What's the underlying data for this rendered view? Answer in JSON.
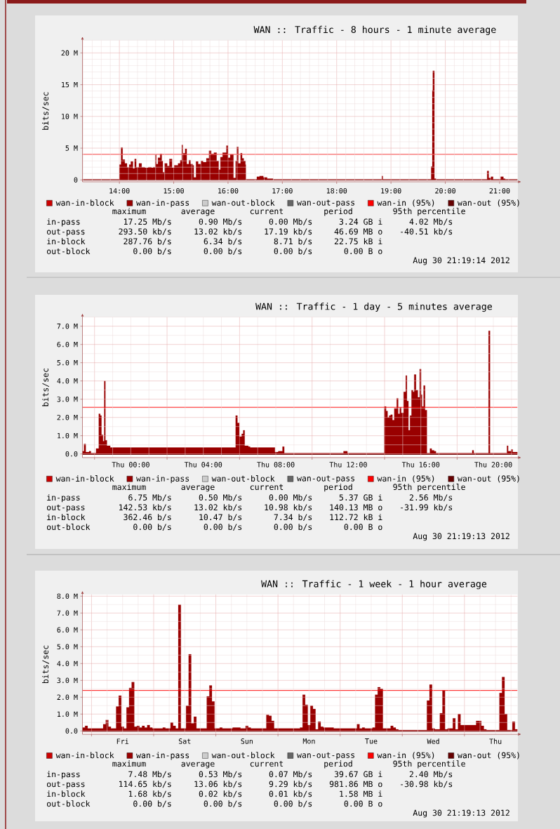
{
  "chart_data": [
    {
      "type": "area",
      "title": "WAN :: Traffic - 8 hours - 1 minute average",
      "ylabel": "bits/sec",
      "xlim": [
        13.32,
        21.33
      ],
      "ylim": [
        -0.3,
        22
      ],
      "xticks": [
        {
          "value": 14,
          "label": "14:00"
        },
        {
          "value": 15,
          "label": "15:00"
        },
        {
          "value": 16,
          "label": "16:00"
        },
        {
          "value": 17,
          "label": "17:00"
        },
        {
          "value": 18,
          "label": "18:00"
        },
        {
          "value": 19,
          "label": "19:00"
        },
        {
          "value": 20,
          "label": "20:00"
        },
        {
          "value": 21,
          "label": "21:00"
        }
      ],
      "yticks": [
        0,
        {
          "value": 5,
          "label": "5 M"
        },
        {
          "value": 10,
          "label": "10 M"
        },
        {
          "value": 15,
          "label": "15 M"
        },
        {
          "value": 20,
          "label": "20 M"
        }
      ],
      "grid": true,
      "legend": "bottom",
      "x": [
        13.32,
        14.0,
        14.03,
        14.06,
        14.1,
        14.14,
        14.18,
        14.21,
        14.25,
        14.28,
        14.31,
        14.36,
        14.41,
        14.47,
        14.53,
        14.59,
        14.62,
        14.66,
        14.68,
        14.71,
        14.75,
        14.78,
        14.8,
        14.83,
        14.88,
        14.92,
        14.97,
        15.01,
        15.08,
        15.12,
        15.15,
        15.17,
        15.21,
        15.24,
        15.28,
        15.31,
        15.35,
        15.37,
        15.41,
        15.45,
        15.5,
        15.54,
        15.6,
        15.65,
        15.69,
        15.74,
        15.79,
        15.83,
        15.86,
        15.9,
        15.97,
        16.0,
        16.04,
        16.1,
        16.14,
        16.16,
        16.19,
        16.23,
        16.26,
        16.29,
        16.32,
        16.33,
        16.53,
        16.58,
        16.65,
        16.72,
        16.83,
        18.83,
        18.85,
        19.74,
        19.76,
        19.77,
        19.8,
        19.83,
        20.77,
        20.8,
        20.84,
        20.88,
        21.02,
        21.07,
        21.1,
        21.33
      ],
      "series": [
        {
          "name": "wan-in-block",
          "color": "#cc0000",
          "values": [
            null,
            null,
            null,
            null,
            null,
            null,
            null,
            null,
            null,
            null,
            null,
            null,
            null,
            null,
            null,
            null,
            null,
            null,
            null,
            null,
            null,
            null,
            null,
            null,
            null,
            null,
            null,
            null,
            null,
            null,
            null,
            null,
            null,
            null,
            null,
            null,
            null,
            null,
            null,
            null,
            null,
            null,
            null,
            null,
            null,
            null,
            null,
            null,
            null,
            null,
            null,
            null,
            null,
            null,
            null,
            null,
            null,
            null,
            null,
            null,
            null,
            null,
            null,
            null,
            null,
            null,
            null,
            null,
            null,
            null,
            null,
            null,
            null,
            null,
            null,
            null,
            null,
            null,
            null,
            null,
            null,
            null
          ]
        },
        {
          "name": "wan-in-pass",
          "color": "#990000",
          "values": [
            0.1,
            2.4,
            5.1,
            3.2,
            2.6,
            2.0,
            2.4,
            2.9,
            1.8,
            3.3,
            2.0,
            2.6,
            2.0,
            1.9,
            2.0,
            1.9,
            2.0,
            4.0,
            2.5,
            3.5,
            4.1,
            3.0,
            1.2,
            2.6,
            2.2,
            3.3,
            1.9,
            2.3,
            2.6,
            3.1,
            5.5,
            4.2,
            4.9,
            2.5,
            3.1,
            2.5,
            2.3,
            0.4,
            2.9,
            2.5,
            3.0,
            2.8,
            3.4,
            4.6,
            4.1,
            4.3,
            3.0,
            1.6,
            3.6,
            4.3,
            5.4,
            3.5,
            4.0,
            0.3,
            3.0,
            5.2,
            2.6,
            4.2,
            3.4,
            3.0,
            2.4,
            0.1,
            0.5,
            0.6,
            0.4,
            0.2,
            0.1,
            0.6,
            0.1,
            2.1,
            14.1,
            17.2,
            0.2,
            0.1,
            1.4,
            0.3,
            0.5,
            0.1,
            0.5,
            0.2,
            0.1,
            0.1
          ]
        },
        {
          "name": "wan-out-block",
          "color": "#cccccc",
          "values": [
            null,
            null,
            null,
            null,
            null,
            null,
            null,
            null,
            null,
            null,
            null,
            null,
            null,
            null,
            null,
            null,
            null,
            null,
            null,
            null,
            null,
            null,
            null,
            null,
            null,
            null,
            null,
            null,
            null,
            null,
            null,
            null,
            null,
            null,
            null,
            null,
            null,
            null,
            null,
            null,
            null,
            null,
            null,
            null,
            null,
            null,
            null,
            null,
            null,
            null,
            null,
            null,
            null,
            null,
            null,
            null,
            null,
            null,
            null,
            null,
            null,
            null,
            null,
            null,
            null,
            null,
            null,
            null,
            null,
            null,
            null,
            null,
            null,
            null,
            null,
            null,
            null,
            null,
            null,
            null,
            null,
            null
          ]
        },
        {
          "name": "wan-out-pass",
          "color": "#666666",
          "values": [
            null,
            null,
            null,
            null,
            null,
            null,
            null,
            null,
            null,
            null,
            null,
            null,
            null,
            null,
            null,
            null,
            null,
            null,
            null,
            null,
            null,
            null,
            null,
            null,
            null,
            null,
            null,
            null,
            null,
            null,
            null,
            null,
            null,
            null,
            null,
            null,
            null,
            null,
            null,
            null,
            null,
            null,
            null,
            null,
            null,
            null,
            null,
            null,
            null,
            null,
            null,
            null,
            null,
            null,
            null,
            null,
            null,
            null,
            null,
            null,
            null,
            null,
            null,
            null,
            null,
            null,
            null,
            null,
            null,
            null,
            null,
            null,
            null,
            null,
            null,
            null,
            null,
            null,
            null,
            null,
            null,
            null
          ]
        }
      ],
      "ref_lines": [
        {
          "axis": "y",
          "value": 4.02,
          "label": "wan-in (95%)",
          "color": "#ff0000"
        },
        {
          "axis": "y",
          "value": -0.04,
          "label": "wan-out (95%)",
          "color": "#660000"
        }
      ],
      "annotations": [
        "maximum",
        "average",
        "current",
        "period",
        "95th percentile",
        "in-pass",
        "17.25 Mb/s",
        "0.90 Mb/s",
        "0.00 Mb/s",
        "3.24 GB i",
        "4.02 Mb/s",
        "out-pass",
        "293.50 kb/s",
        "13.02 kb/s",
        "17.19 kb/s",
        "46.69 MB o",
        "-40.51 kb/s",
        "in-block",
        "287.76 b/s",
        "6.34 b/s",
        "8.71 b/s",
        "22.75 kB i",
        "out-block",
        "0.00 b/s",
        "0.00 b/s",
        "0.00 b/s",
        "0.00 B o",
        "Aug 30 21:19:14 2012"
      ]
    },
    {
      "type": "area",
      "title": "WAN :: Traffic - 1 day - 5 minutes average",
      "ylabel": "bits/sec",
      "xlim": [
        "2012-08-29T21:20",
        "2012-08-30T21:20"
      ],
      "ylim": [
        -0.2,
        7.5
      ],
      "xticks": [
        {
          "value": "2012-08-29T22:00",
          "label": null
        },
        {
          "value": "2012-08-30T00:00",
          "label": "Thu 00:00"
        },
        {
          "value": "2012-08-30T02:00",
          "label": null
        },
        {
          "value": "2012-08-30T04:00",
          "label": "Thu 04:00"
        },
        {
          "value": "2012-08-30T06:00",
          "label": null
        },
        {
          "value": "2012-08-30T08:00",
          "label": "Thu 08:00"
        },
        {
          "value": "2012-08-30T10:00",
          "label": null
        },
        {
          "value": "2012-08-30T12:00",
          "label": "Thu 12:00"
        },
        {
          "value": "2012-08-30T14:00",
          "label": null
        },
        {
          "value": "2012-08-30T16:00",
          "label": "Thu 16:00"
        },
        {
          "value": "2012-08-30T18:00",
          "label": null
        },
        {
          "value": "2012-08-30T20:00",
          "label": "Thu 20:00"
        }
      ],
      "yticks": [
        {
          "value": 0,
          "label": "0.0"
        },
        {
          "value": 1,
          "label": "1.0 M"
        },
        {
          "value": 2,
          "label": "2.0 M"
        },
        {
          "value": 3,
          "label": "3.0 M"
        },
        {
          "value": 4,
          "label": "4.0 M"
        },
        {
          "value": 5,
          "label": "5.0 M"
        },
        {
          "value": 6,
          "label": "6.0 M"
        },
        {
          "value": 7,
          "label": "7.0 M"
        }
      ],
      "grid": true,
      "legend": "bottom",
      "x": [
        "2012-08-29T21:20",
        "2012-08-29T21:25",
        "2012-08-29T21:31",
        "2012-08-29T21:42",
        "2012-08-29T21:48",
        "2012-08-29T22:05",
        "2012-08-29T22:14",
        "2012-08-29T22:19",
        "2012-08-29T22:23",
        "2012-08-29T22:28",
        "2012-08-29T22:32",
        "2012-08-29T22:36",
        "2012-08-29T22:41",
        "2012-08-29T22:52",
        "2012-08-30T05:47",
        "2012-08-30T05:53",
        "2012-08-30T05:59",
        "2012-08-30T06:07",
        "2012-08-30T06:12",
        "2012-08-30T06:17",
        "2012-08-30T06:29",
        "2012-08-30T06:35",
        "2012-08-30T07:57",
        "2012-08-30T08:08",
        "2012-08-30T08:22",
        "2012-08-30T08:28",
        "2012-08-30T11:44",
        "2012-08-30T11:57",
        "2012-08-30T13:59",
        "2012-08-30T14:05",
        "2012-08-30T14:10",
        "2012-08-30T14:15",
        "2012-08-30T14:20",
        "2012-08-30T14:26",
        "2012-08-30T14:32",
        "2012-08-30T14:40",
        "2012-08-30T14:45",
        "2012-08-30T14:50",
        "2012-08-30T14:55",
        "2012-08-30T15:03",
        "2012-08-30T15:10",
        "2012-08-30T15:14",
        "2012-08-30T15:19",
        "2012-08-30T15:24",
        "2012-08-30T15:29",
        "2012-08-30T15:34",
        "2012-08-30T15:38",
        "2012-08-30T15:44",
        "2012-08-30T15:50",
        "2012-08-30T15:56",
        "2012-08-30T16:01",
        "2012-08-30T16:04",
        "2012-08-30T16:09",
        "2012-08-30T16:14",
        "2012-08-30T16:20",
        "2012-08-30T16:30",
        "2012-08-30T16:36",
        "2012-08-30T16:44",
        "2012-08-30T16:50",
        "2012-08-30T18:50",
        "2012-08-30T18:55",
        "2012-08-30T19:44",
        "2012-08-30T19:49",
        "2012-08-30T20:45",
        "2012-08-30T20:49",
        "2012-08-30T20:59",
        "2012-08-30T21:04",
        "2012-08-30T21:20"
      ],
      "series": [
        {
          "name": "wan-in-block",
          "color": "#cc0000",
          "values": [
            null,
            null,
            null,
            null,
            null,
            null,
            null,
            null,
            null,
            null,
            null,
            null,
            null,
            null,
            null,
            null,
            null,
            null,
            null,
            null,
            null,
            null,
            null,
            null,
            null,
            null,
            null,
            null,
            null,
            null,
            null,
            null,
            null,
            null,
            null,
            null,
            null,
            null,
            null,
            null,
            null,
            null,
            null,
            null,
            null,
            null,
            null,
            null,
            null,
            null,
            null,
            null,
            null,
            null,
            null,
            null,
            null,
            null,
            null,
            null,
            null,
            null,
            null,
            null,
            null,
            null,
            null,
            null
          ]
        },
        {
          "name": "wan-in-pass",
          "color": "#990000",
          "values": [
            0.15,
            0.55,
            0.1,
            0.15,
            0.05,
            0.3,
            2.2,
            2.1,
            1.05,
            0.7,
            4.0,
            0.75,
            0.45,
            0.35,
            2.1,
            1.7,
            0.95,
            1.1,
            1.3,
            0.45,
            0.4,
            0.35,
            0.1,
            0.15,
            0.4,
            0.05,
            0.15,
            0.05,
            2.6,
            2.35,
            2.0,
            2.1,
            2.15,
            1.85,
            2.5,
            3.05,
            2.2,
            2.55,
            2.25,
            3.4,
            4.3,
            2.9,
            1.3,
            2.1,
            3.5,
            3.4,
            4.35,
            3.5,
            3.1,
            4.65,
            3.25,
            2.6,
            3.75,
            2.4,
            0.05,
            0.3,
            0.2,
            0.15,
            0.05,
            0.2,
            0.05,
            6.75,
            0.05,
            0.45,
            0.15,
            0.25,
            0.1,
            0.1
          ]
        },
        {
          "name": "wan-out-block",
          "color": "#cccccc",
          "values": [
            null,
            null,
            null,
            null,
            null,
            null,
            null,
            null,
            null,
            null,
            null,
            null,
            null,
            null,
            null,
            null,
            null,
            null,
            null,
            null,
            null,
            null,
            null,
            null,
            null,
            null,
            null,
            null,
            null,
            null,
            null,
            null,
            null,
            null,
            null,
            null,
            null,
            null,
            null,
            null,
            null,
            null,
            null,
            null,
            null,
            null,
            null,
            null,
            null,
            null,
            null,
            null,
            null,
            null,
            null,
            null,
            null,
            null,
            null,
            null,
            null,
            null,
            null,
            null,
            null,
            null,
            null,
            null
          ]
        },
        {
          "name": "wan-out-pass",
          "color": "#666666",
          "values": [
            null,
            null,
            null,
            null,
            null,
            null,
            null,
            null,
            null,
            null,
            null,
            null,
            null,
            null,
            null,
            null,
            null,
            null,
            null,
            null,
            null,
            null,
            null,
            null,
            null,
            null,
            null,
            null,
            null,
            null,
            null,
            null,
            null,
            null,
            null,
            null,
            null,
            null,
            null,
            null,
            null,
            null,
            null,
            null,
            null,
            null,
            null,
            null,
            null,
            null,
            null,
            null,
            null,
            null,
            null,
            null,
            null,
            null,
            null,
            null,
            null,
            null,
            null,
            null,
            null,
            null,
            null,
            null
          ]
        }
      ],
      "ref_lines": [
        {
          "axis": "y",
          "value": 2.56,
          "label": "wan-in (95%)",
          "color": "#ff0000"
        },
        {
          "axis": "y",
          "value": -0.03,
          "label": "wan-out (95%)",
          "color": "#660000"
        }
      ],
      "annotations": [
        "maximum",
        "average",
        "current",
        "period",
        "95th percentile",
        "in-pass",
        "6.75 Mb/s",
        "0.50 Mb/s",
        "0.00 Mb/s",
        "5.37 GB i",
        "2.56 Mb/s",
        "out-pass",
        "142.53 kb/s",
        "13.02 kb/s",
        "10.98 kb/s",
        "140.13 MB o",
        "-31.99 kb/s",
        "in-block",
        "362.46 b/s",
        "10.47 b/s",
        "7.34 b/s",
        "112.72 kB i",
        "out-block",
        "0.00 b/s",
        "0.00 b/s",
        "0.00 b/s",
        "0.00 B o",
        "Aug 30 21:19:13 2012"
      ]
    },
    {
      "type": "area",
      "title": "WAN :: Traffic - 1 week - 1 hour average",
      "ylabel": "bits/sec",
      "ylim": [
        -0.2,
        8.1
      ],
      "categories": [
        null,
        null,
        null,
        null,
        null,
        null,
        null,
        null,
        null,
        null,
        null,
        null,
        null,
        null,
        null,
        "Fri",
        null,
        null,
        null,
        null,
        null,
        null,
        null,
        null,
        null,
        null,
        null,
        null,
        null,
        null,
        null,
        null,
        null,
        null,
        null,
        null,
        null,
        null,
        null,
        "Sat",
        null,
        null,
        null,
        null,
        null,
        null,
        null,
        null,
        null,
        null,
        null,
        null,
        null,
        null,
        null,
        null,
        null,
        null,
        null,
        null,
        null,
        null,
        null,
        "Sun",
        null,
        null,
        null,
        null,
        null,
        null,
        null,
        null,
        null,
        null,
        null,
        null,
        null,
        null,
        null,
        null,
        null,
        null,
        null,
        null,
        null,
        null,
        null,
        "Mon",
        null,
        null,
        null,
        null,
        null,
        null,
        null,
        null,
        null,
        null,
        null,
        null,
        null,
        null,
        null,
        null,
        null,
        null,
        null,
        null,
        null,
        null,
        null,
        "Tue",
        null,
        null,
        null,
        null,
        null,
        null,
        null,
        null,
        null,
        null,
        null,
        null,
        null,
        null,
        null,
        null,
        null,
        null,
        null,
        null,
        null,
        null,
        null,
        "Wed",
        null,
        null,
        null,
        null,
        null,
        null,
        null,
        null,
        null,
        null,
        null,
        null,
        null,
        null,
        null,
        null,
        null,
        null,
        null,
        null,
        null,
        null,
        null,
        "Thu",
        null,
        null,
        null,
        null,
        null,
        null,
        null,
        null
      ],
      "yticks": [
        {
          "value": 0,
          "label": "0.0"
        },
        {
          "value": 1,
          "label": "1.0 M"
        },
        {
          "value": 2,
          "label": "2.0 M"
        },
        {
          "value": 3,
          "label": "3.0 M"
        },
        {
          "value": 4,
          "label": "4.0 M"
        },
        {
          "value": 5,
          "label": "5.0 M"
        },
        {
          "value": 6,
          "label": "6.0 M"
        },
        {
          "value": 7,
          "label": "7.0 M"
        },
        {
          "value": 8,
          "label": "8.0 M"
        }
      ],
      "grid": true,
      "legend": "bottom",
      "series": [
        {
          "name": "wan-in-block",
          "color": "#cc0000",
          "values": [
            null,
            null,
            null,
            null,
            null,
            null,
            null,
            null,
            null,
            null,
            null,
            null,
            null,
            null,
            null,
            null,
            null,
            null,
            null,
            null,
            null,
            null,
            null,
            null,
            null,
            null,
            null,
            null,
            null,
            null,
            null,
            null,
            null,
            null,
            null,
            null,
            null,
            null,
            null,
            null,
            null,
            null,
            null,
            null,
            null,
            null,
            null,
            null,
            null,
            null,
            null,
            null,
            null,
            null,
            null,
            null,
            null,
            null,
            null,
            null,
            null,
            null,
            null,
            null,
            null,
            null,
            null,
            null,
            null,
            null,
            null,
            null,
            null,
            null,
            null,
            null,
            null,
            null,
            null,
            null,
            null,
            null,
            null,
            null,
            null,
            null,
            null,
            null,
            null,
            null,
            null,
            null,
            null,
            null,
            null,
            null,
            null,
            null,
            null,
            null,
            null,
            null,
            null,
            null,
            null,
            null,
            null,
            null,
            null,
            null,
            null,
            null,
            null,
            null,
            null,
            null,
            null,
            null,
            null,
            null,
            null,
            null,
            null,
            null,
            null,
            null,
            null,
            null,
            null,
            null,
            null,
            null,
            null,
            null,
            null,
            null,
            null,
            null,
            null,
            null,
            null,
            null,
            null,
            null,
            null,
            null,
            null,
            null,
            null,
            null,
            null,
            null,
            null,
            null,
            null,
            null,
            null,
            null,
            null,
            null,
            null,
            null,
            null,
            null,
            null,
            null,
            null,
            null
          ]
        },
        {
          "name": "wan-in-pass",
          "color": "#990000",
          "values": [
            0.2,
            0.3,
            0.15,
            0.15,
            0.15,
            0.15,
            0.15,
            0.15,
            0.4,
            0.65,
            0.25,
            0.15,
            0.15,
            1.45,
            2.1,
            0.25,
            0.15,
            1.4,
            2.55,
            2.9,
            0.25,
            0.3,
            0.2,
            0.3,
            0.2,
            0.35,
            0.2,
            0.15,
            0.15,
            0.15,
            0.15,
            0.2,
            0.15,
            0.15,
            0.5,
            0.3,
            0.15,
            7.5,
            0.15,
            0.15,
            1.5,
            4.55,
            0.45,
            0.85,
            0.15,
            0.15,
            0.15,
            0.15,
            2.05,
            2.7,
            1.75,
            0.15,
            0.15,
            0.2,
            0.15,
            0.15,
            0.15,
            0.15,
            0.2,
            0.2,
            0.2,
            0.15,
            0.15,
            0.3,
            0.2,
            0.15,
            0.15,
            0.15,
            0.15,
            0.15,
            0.15,
            0.95,
            0.9,
            0.6,
            0.15,
            0.15,
            0.15,
            0.15,
            0.15,
            0.15,
            0.15,
            0.15,
            0.15,
            0.15,
            0.2,
            2.15,
            1.55,
            0.35,
            1.5,
            1.3,
            0.1,
            0.55,
            0.25,
            0.2,
            0.2,
            0.2,
            0.2,
            0.15,
            0.15,
            0.15,
            0.15,
            0.15,
            0.15,
            0.15,
            0.15,
            0.15,
            0.4,
            0.15,
            0.2,
            0.15,
            0.15,
            0.15,
            0.2,
            2.15,
            2.6,
            2.5,
            0.15,
            0.15,
            0.15,
            0.3,
            0.2,
            0.1,
            0.05,
            0.05,
            0.05,
            0.05,
            0.05,
            0.05,
            0.05,
            0.05,
            0.05,
            0.05,
            0.05,
            1.8,
            2.75,
            0.15,
            0.1,
            0.1,
            1.05,
            2.4,
            0.1,
            0.15,
            0.15,
            0.75,
            0.1,
            1.0,
            0.35,
            0.35,
            0.35,
            0.35,
            0.35,
            0.35,
            0.6,
            0.6,
            0.3,
            0.1,
            0.05,
            0.05,
            0.05,
            0.05,
            0.05,
            2.25,
            3.2,
            1.0,
            0.05,
            0.05,
            0.55,
            0.1
          ]
        },
        {
          "name": "wan-out-block",
          "color": "#cccccc",
          "values": [
            null,
            null,
            null,
            null,
            null,
            null,
            null,
            null,
            null,
            null,
            null,
            null,
            null,
            null,
            null,
            null,
            null,
            null,
            null,
            null,
            null,
            null,
            null,
            null,
            null,
            null,
            null,
            null,
            null,
            null,
            null,
            null,
            null,
            null,
            null,
            null,
            null,
            null,
            null,
            null,
            null,
            null,
            null,
            null,
            null,
            null,
            null,
            null,
            null,
            null,
            null,
            null,
            null,
            null,
            null,
            null,
            null,
            null,
            null,
            null,
            null,
            null,
            null,
            null,
            null,
            null,
            null,
            null,
            null,
            null,
            null,
            null,
            null,
            null,
            null,
            null,
            null,
            null,
            null,
            null,
            null,
            null,
            null,
            null,
            null,
            null,
            null,
            null,
            null,
            null,
            null,
            null,
            null,
            null,
            null,
            null,
            null,
            null,
            null,
            null,
            null,
            null,
            null,
            null,
            null,
            null,
            null,
            null,
            null,
            null,
            null,
            null,
            null,
            null,
            null,
            null,
            null,
            null,
            null,
            null,
            null,
            null,
            null,
            null,
            null,
            null,
            null,
            null,
            null,
            null,
            null,
            null,
            null,
            null,
            null,
            null,
            null,
            null,
            null,
            null,
            null,
            null,
            null,
            null,
            null,
            null,
            null,
            null,
            null,
            null,
            null,
            null,
            null,
            null,
            null,
            null,
            null,
            null,
            null,
            null,
            null,
            null,
            null,
            null,
            null,
            null,
            null,
            null
          ]
        },
        {
          "name": "wan-out-pass",
          "color": "#666666",
          "values": [
            null,
            null,
            null,
            null,
            null,
            null,
            null,
            null,
            null,
            null,
            null,
            null,
            null,
            null,
            null,
            null,
            null,
            null,
            null,
            null,
            null,
            null,
            null,
            null,
            null,
            null,
            null,
            null,
            null,
            null,
            null,
            null,
            null,
            null,
            null,
            null,
            null,
            null,
            null,
            null,
            null,
            null,
            null,
            null,
            null,
            null,
            null,
            null,
            null,
            null,
            null,
            null,
            null,
            null,
            null,
            null,
            null,
            null,
            null,
            null,
            null,
            null,
            null,
            null,
            null,
            null,
            null,
            null,
            null,
            null,
            null,
            null,
            null,
            null,
            null,
            null,
            null,
            null,
            null,
            null,
            null,
            null,
            null,
            null,
            null,
            null,
            null,
            null,
            null,
            null,
            null,
            null,
            null,
            null,
            null,
            null,
            null,
            null,
            null,
            null,
            null,
            null,
            null,
            null,
            null,
            null,
            null,
            null,
            null,
            null,
            null,
            null,
            null,
            null,
            null,
            null,
            null,
            null,
            null,
            null,
            null,
            null,
            null,
            null,
            null,
            null,
            null,
            null,
            null,
            null,
            null,
            null,
            null,
            null,
            null,
            null,
            null,
            null,
            null,
            null,
            null,
            null,
            null,
            null,
            null,
            null,
            null,
            null,
            null,
            null,
            null,
            null,
            null,
            null,
            null,
            null,
            null,
            null,
            null,
            null,
            null,
            null,
            null,
            null,
            null,
            null,
            null,
            null
          ]
        }
      ],
      "ref_lines": [
        {
          "axis": "y",
          "value": 2.4,
          "label": "wan-in (95%)",
          "color": "#ff0000"
        },
        {
          "axis": "y",
          "value": -0.03,
          "label": "wan-out (95%)",
          "color": "#660000"
        }
      ],
      "annotations": [
        "maximum",
        "average",
        "current",
        "period",
        "95th percentile",
        "in-pass",
        "7.48 Mb/s",
        "0.53 Mb/s",
        "0.07 Mb/s",
        "39.67 GB i",
        "2.40 Mb/s",
        "out-pass",
        "114.65 kb/s",
        "13.06 kb/s",
        "9.29 kb/s",
        "981.86 MB o",
        "-30.98 kb/s",
        "in-block",
        "1.68 kb/s",
        "0.02 kb/s",
        "0.01 kb/s",
        "1.58 MB i",
        "out-block",
        "0.00 b/s",
        "0.00 b/s",
        "0.00 b/s",
        "0.00 B o",
        "Aug 30 21:19:13 2012"
      ]
    }
  ]
}
